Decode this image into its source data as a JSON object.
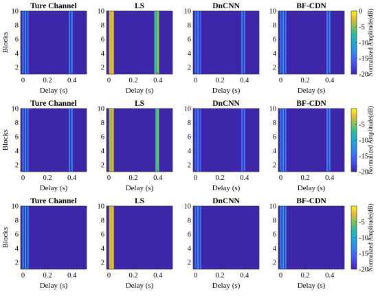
{
  "figure": {
    "panel_titles": [
      "Ture Channel",
      "LS",
      "DnCNN",
      "BF-CDN"
    ],
    "xlabel": "Delay (s)",
    "ylabel": "Blocks",
    "colorbar_label": "Normalized Amplitude(dB)"
  },
  "chart_data": [
    {
      "type": "heatmap",
      "row": 1,
      "xlabel": "Delay (s)",
      "ylabel": "Blocks",
      "xlim": [
        -0.02,
        0.52
      ],
      "ylim": [
        1,
        10
      ],
      "xticks": [
        "0",
        "0.2",
        "0.4"
      ],
      "yticks": [
        "2",
        "4",
        "6",
        "8",
        "10"
      ],
      "colorbar": {
        "label": "Normalized Amplitude(dB)",
        "range": [
          -20,
          0
        ],
        "ticks": [
          "0",
          "-5",
          "-10",
          "-15",
          "-20"
        ]
      },
      "panels": [
        {
          "title": "Ture Channel",
          "peaks": [
            {
              "delay": 0.0,
              "db": -14
            },
            {
              "delay": 0.02,
              "db": -12
            },
            {
              "delay": 0.04,
              "db": -15
            },
            {
              "delay": 0.38,
              "db": -14
            },
            {
              "delay": 0.4,
              "db": -13
            }
          ]
        },
        {
          "title": "LS",
          "peaks": [
            {
              "delay": 0.01,
              "db": -3
            },
            {
              "delay": 0.03,
              "db": -2
            },
            {
              "delay": 0.38,
              "db": -7
            },
            {
              "delay": 0.4,
              "db": -5
            }
          ]
        },
        {
          "title": "DnCNN",
          "peaks": [
            {
              "delay": 0.0,
              "db": -14
            },
            {
              "delay": 0.02,
              "db": -13
            },
            {
              "delay": 0.04,
              "db": -16
            },
            {
              "delay": 0.38,
              "db": -14
            },
            {
              "delay": 0.4,
              "db": -14
            }
          ]
        },
        {
          "title": "BF-CDN",
          "peaks": [
            {
              "delay": 0.0,
              "db": -14
            },
            {
              "delay": 0.02,
              "db": -12
            },
            {
              "delay": 0.04,
              "db": -15
            },
            {
              "delay": 0.38,
              "db": -14
            },
            {
              "delay": 0.4,
              "db": -13
            }
          ]
        }
      ]
    },
    {
      "type": "heatmap",
      "row": 2,
      "xlabel": "Delay (s)",
      "ylabel": "Blocks",
      "xlim": [
        -0.02,
        0.52
      ],
      "ylim": [
        1,
        10
      ],
      "xticks": [
        "0",
        "0.2",
        "0.4"
      ],
      "yticks": [
        "2",
        "4",
        "6",
        "8",
        "10"
      ],
      "colorbar": {
        "label": "Normalized Amplitude(dB)",
        "range": [
          -20,
          0
        ],
        "ticks": [
          "-5",
          "-10",
          "-15",
          "-20"
        ]
      },
      "panels": [
        {
          "title": "Ture Channel",
          "peaks": [
            {
              "delay": 0.0,
              "db": -14
            },
            {
              "delay": 0.02,
              "db": -12
            },
            {
              "delay": 0.04,
              "db": -15
            },
            {
              "delay": 0.38,
              "db": -14
            },
            {
              "delay": 0.4,
              "db": -13
            }
          ]
        },
        {
          "title": "LS",
          "peaks": [
            {
              "delay": 0.01,
              "db": -4
            },
            {
              "delay": 0.03,
              "db": -3
            },
            {
              "delay": 0.39,
              "db": -7
            },
            {
              "delay": 0.4,
              "db": -6
            }
          ]
        },
        {
          "title": "DnCNN",
          "peaks": [
            {
              "delay": 0.0,
              "db": -15
            },
            {
              "delay": 0.02,
              "db": -13
            },
            {
              "delay": 0.04,
              "db": -16
            },
            {
              "delay": 0.38,
              "db": -15
            },
            {
              "delay": 0.4,
              "db": -14
            }
          ]
        },
        {
          "title": "BF-CDN",
          "peaks": [
            {
              "delay": 0.0,
              "db": -14
            },
            {
              "delay": 0.02,
              "db": -12
            },
            {
              "delay": 0.04,
              "db": -15
            },
            {
              "delay": 0.38,
              "db": -14
            },
            {
              "delay": 0.4,
              "db": -13
            }
          ]
        }
      ]
    },
    {
      "type": "heatmap",
      "row": 3,
      "xlabel": "Delay (s)",
      "ylabel": "Blocks",
      "xlim": [
        -0.02,
        0.52
      ],
      "ylim": [
        1,
        10
      ],
      "xticks": [
        "0",
        "0.2",
        "0.4"
      ],
      "yticks": [
        "2",
        "4",
        "6",
        "8",
        "10"
      ],
      "colorbar": {
        "label": "Normalized Amplitude(dB)",
        "range": [
          -20,
          0
        ],
        "ticks": [
          "-5",
          "-10",
          "-15",
          "-20"
        ]
      },
      "panels": [
        {
          "title": "Ture Channel",
          "peaks": [
            {
              "delay": 0.0,
              "db": -13
            },
            {
              "delay": 0.02,
              "db": -11
            },
            {
              "delay": 0.04,
              "db": -14
            }
          ]
        },
        {
          "title": "LS",
          "peaks": [
            {
              "delay": 0.01,
              "db": -3
            },
            {
              "delay": 0.03,
              "db": -2
            }
          ]
        },
        {
          "title": "DnCNN",
          "peaks": [
            {
              "delay": 0.0,
              "db": -14
            },
            {
              "delay": 0.02,
              "db": -12
            },
            {
              "delay": 0.04,
              "db": -15
            }
          ]
        },
        {
          "title": "BF-CDN",
          "peaks": [
            {
              "delay": 0.0,
              "db": -13
            },
            {
              "delay": 0.02,
              "db": -11
            },
            {
              "delay": 0.04,
              "db": -14
            }
          ]
        }
      ]
    }
  ]
}
